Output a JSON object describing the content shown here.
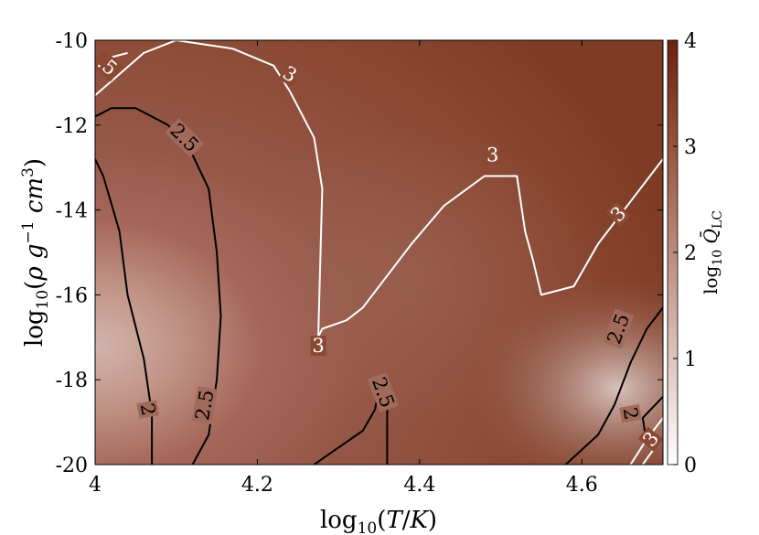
{
  "chart_data": {
    "type": "heatmap",
    "title": "",
    "xlabel": "log10(T/K)",
    "ylabel": "log10(ρ g−1 cm3)",
    "xlim": [
      4.0,
      4.7
    ],
    "ylim": [
      -20,
      -10
    ],
    "x_ticks": [
      "4",
      "4.2",
      "4.4",
      "4.6"
    ],
    "y_ticks": [
      "-10",
      "-12",
      "-14",
      "-16",
      "-18",
      "-20"
    ],
    "colorbar": {
      "label": "log10 Q̄LC",
      "range": [
        0,
        4
      ],
      "ticks": [
        "0",
        "1",
        "2",
        "3",
        "4"
      ],
      "colormap": [
        "#ffffff",
        "#d9b3aa",
        "#b37a6b",
        "#8a4530",
        "#6b2210"
      ]
    },
    "contours": [
      {
        "level": "2",
        "color": "#000000",
        "x": [
          4.07,
          4.07,
          4.06,
          4.04,
          4.03,
          4.01,
          4.0
        ],
        "y": [
          -20,
          -18.8,
          -17.5,
          -16.0,
          -14.5,
          -13.2,
          -12.8
        ]
      },
      {
        "level": "2.5",
        "color": "#000000",
        "x": [
          4.12,
          4.14,
          4.15,
          4.155,
          4.15,
          4.14,
          4.12,
          4.09,
          4.05,
          4.02,
          4.0
        ],
        "y": [
          -20,
          -19.3,
          -18.0,
          -16.5,
          -15.0,
          -13.5,
          -12.7,
          -12.0,
          -11.6,
          -11.6,
          -11.8
        ]
      },
      {
        "level": "2.5",
        "color": "#000000",
        "x": [
          4.27,
          4.3,
          4.33,
          4.345,
          4.35,
          4.36,
          4.36
        ],
        "y": [
          -20,
          -19.6,
          -19.2,
          -18.7,
          -18.2,
          -18.7,
          -20
        ]
      },
      {
        "level": "2.5",
        "color": "#000000",
        "x": [
          4.58,
          4.62,
          4.64,
          4.66,
          4.68,
          4.7
        ],
        "y": [
          -20,
          -19.3,
          -18.6,
          -17.6,
          -16.8,
          -16.3
        ]
      },
      {
        "level": "2",
        "color": "#000000",
        "x": [
          4.68,
          4.675,
          4.7
        ],
        "y": [
          -19.5,
          -18.9,
          -18.4
        ]
      },
      {
        "level": "3",
        "color": "#ffffff",
        "x": [
          4.0,
          4.03,
          4.06,
          4.1,
          4.17,
          4.22,
          4.24,
          4.27,
          4.28,
          4.275,
          4.28,
          4.31,
          4.33,
          4.35,
          4.39,
          4.43,
          4.48,
          4.52,
          4.53,
          4.54,
          4.55,
          4.59,
          4.62,
          4.66,
          4.7
        ],
        "y": [
          -11.3,
          -10.8,
          -10.3,
          -10.0,
          -10.2,
          -10.6,
          -11.2,
          -12.3,
          -13.5,
          -17.0,
          -16.8,
          -16.6,
          -16.3,
          -15.8,
          -14.8,
          -13.9,
          -13.2,
          -13.2,
          -14.5,
          -15.2,
          -16.0,
          -15.8,
          -14.8,
          -13.8,
          -12.8
        ]
      },
      {
        "level": "3",
        "color": "#ffffff",
        "x": [
          4.66,
          4.68,
          4.7
        ],
        "y": [
          -20,
          -19.4,
          -18.9
        ]
      },
      {
        "level": "3.5",
        "color": "#ffffff",
        "x": [
          4.0,
          4.02,
          4.04
        ],
        "y": [
          -10.6,
          -10.4,
          -10.3
        ]
      },
      {
        "level": "3.5",
        "color": "#ffffff",
        "x": [
          4.675,
          4.69,
          4.7
        ],
        "y": [
          -20,
          -19.6,
          -19.4
        ]
      }
    ],
    "contour_labels": [
      {
        "text": "2",
        "x": 4.065,
        "y": -18.7,
        "angle": 80
      },
      {
        "text": "2.5",
        "x": 4.135,
        "y": -18.6,
        "angle": -80
      },
      {
        "text": "2.5",
        "x": 4.11,
        "y": -12.3,
        "angle": 45
      },
      {
        "text": "2.5",
        "x": 4.355,
        "y": -18.3,
        "angle": 70
      },
      {
        "text": "2.5",
        "x": 4.645,
        "y": -16.8,
        "angle": -70
      },
      {
        "text": "2",
        "x": 4.66,
        "y": -18.8,
        "angle": 80
      },
      {
        "text": "3",
        "x": 4.24,
        "y": -10.8,
        "angle": 30
      },
      {
        "text": "3",
        "x": 4.275,
        "y": -17.2,
        "angle": 0
      },
      {
        "text": "3",
        "x": 4.49,
        "y": -12.7,
        "angle": 0
      },
      {
        "text": "3",
        "x": 4.645,
        "y": -14.1,
        "angle": -45
      },
      {
        "text": "3",
        "x": 4.685,
        "y": -19.4,
        "angle": -50
      },
      {
        "text": ".5",
        "x": 4.015,
        "y": -10.6,
        "angle": 40
      }
    ]
  }
}
